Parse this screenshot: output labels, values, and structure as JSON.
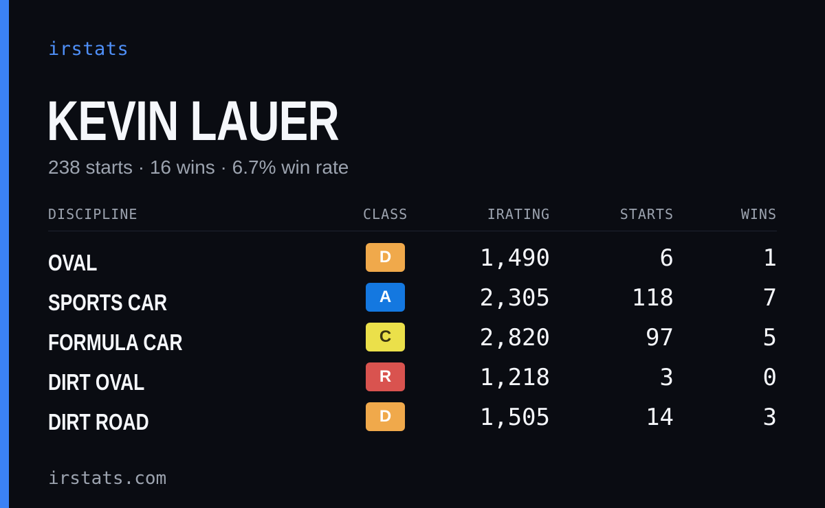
{
  "brand": "irstats",
  "driver": {
    "name": "KEVIN LAUER",
    "summary": "238 starts · 16 wins · 6.7% win rate"
  },
  "table": {
    "headers": {
      "discipline": "DISCIPLINE",
      "class": "CLASS",
      "irating": "IRATING",
      "starts": "STARTS",
      "wins": "WINS"
    },
    "rows": [
      {
        "discipline": "OVAL",
        "class": "D",
        "class_color": "#f0a94b",
        "class_text_color": "#ffffff",
        "irating": "1,490",
        "starts": "6",
        "wins": "1"
      },
      {
        "discipline": "SPORTS CAR",
        "class": "A",
        "class_color": "#1478e0",
        "class_text_color": "#ffffff",
        "irating": "2,305",
        "starts": "118",
        "wins": "7"
      },
      {
        "discipline": "FORMULA CAR",
        "class": "C",
        "class_color": "#ebe04a",
        "class_text_color": "#3a3410",
        "irating": "2,820",
        "starts": "97",
        "wins": "5"
      },
      {
        "discipline": "DIRT OVAL",
        "class": "R",
        "class_color": "#d9534f",
        "class_text_color": "#ffffff",
        "irating": "1,218",
        "starts": "3",
        "wins": "0"
      },
      {
        "discipline": "DIRT ROAD",
        "class": "D",
        "class_color": "#f0a94b",
        "class_text_color": "#ffffff",
        "irating": "1,505",
        "starts": "14",
        "wins": "3"
      }
    ]
  },
  "footer": "irstats.com",
  "colors": {
    "background": "#0a0c12",
    "accent": "#3b82f6"
  }
}
